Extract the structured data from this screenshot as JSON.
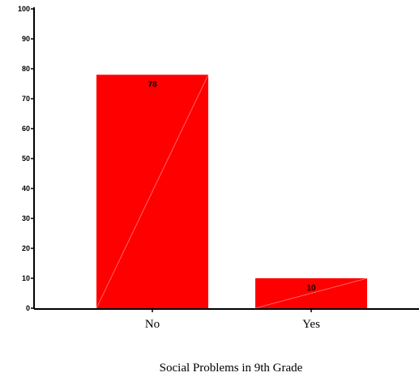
{
  "chart_data": {
    "type": "bar",
    "title": "",
    "xlabel": "Social Problems in 9th Grade",
    "ylabel": "",
    "categories": [
      "No",
      "Yes"
    ],
    "values": [
      78,
      10
    ],
    "data_labels": [
      "78",
      "10"
    ],
    "ylim": [
      0,
      100
    ],
    "yticks": [
      "0",
      "10",
      "20",
      "30",
      "40",
      "50",
      "60",
      "70",
      "80",
      "90",
      "100"
    ],
    "grid": false,
    "bar_color": "#ff0000",
    "axis_color": "#000000"
  }
}
